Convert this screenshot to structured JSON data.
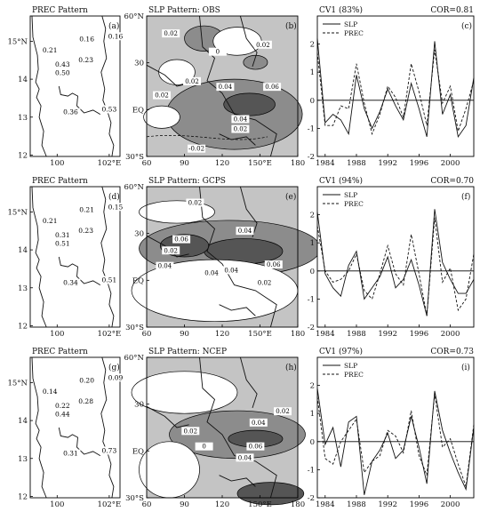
{
  "rows": [
    {
      "prec": {
        "title": "PREC Pattern",
        "panel": "(a)",
        "y_ticks": [
          "15°N",
          "14",
          "13",
          "12"
        ],
        "x_ticks": [
          "100",
          "102°E"
        ],
        "values": [
          "0.16",
          "0.16",
          "0.21",
          "0.23",
          "0.43",
          "0.50",
          "0.36",
          "0.53"
        ]
      },
      "slp": {
        "title": "SLP Pattern: OBS",
        "panel": "(b)",
        "y_ticks": [
          "60°N",
          "30",
          "EQ",
          "30°S"
        ],
        "x_ticks": [
          "60",
          "90",
          "120",
          "150°E",
          "180"
        ],
        "contours": [
          "0.02",
          "0.02",
          "0.02",
          "0.02",
          "0.04",
          "0.06",
          "0.04",
          "0.02",
          "-0.02",
          "0"
        ]
      },
      "line": {
        "title": "CV1 (83%)",
        "cor": "COR=0.81",
        "panel": "(c)",
        "legend": [
          "SLP",
          "PREC"
        ]
      }
    },
    {
      "prec": {
        "title": "PREC Pattern",
        "panel": "(d)",
        "y_ticks": [
          "15°N",
          "14",
          "13",
          "12"
        ],
        "x_ticks": [
          "100",
          "102°E"
        ],
        "values": [
          "0.21",
          "0.15",
          "0.21",
          "0.23",
          "0.31",
          "0.51",
          "0.34",
          "0.51"
        ]
      },
      "slp": {
        "title": "SLP Pattern: GCPS",
        "panel": "(e)",
        "y_ticks": [
          "60°N",
          "30",
          "EQ",
          "30°S"
        ],
        "x_ticks": [
          "60",
          "90",
          "120",
          "150°E",
          "180"
        ],
        "contours": [
          "0.02",
          "0.04",
          "0.06",
          "0.02",
          "0.04",
          "0.04",
          "0.04",
          "0.06",
          "0.02"
        ]
      },
      "line": {
        "title": "CV1 (94%)",
        "cor": "COR=0.70",
        "panel": "(f)",
        "legend": [
          "SLP",
          "PREC"
        ]
      }
    },
    {
      "prec": {
        "title": "PREC Pattern",
        "panel": "(g)",
        "y_ticks": [
          "15°N",
          "14",
          "13",
          "12"
        ],
        "x_ticks": [
          "100",
          "102°E"
        ],
        "values": [
          "0.20",
          "0.09",
          "0.14",
          "0.28",
          "0.22",
          "0.44",
          "0.31",
          "0.73"
        ]
      },
      "slp": {
        "title": "SLP Pattern: NCEP",
        "panel": "(h)",
        "y_ticks": [
          "60°N",
          "30",
          "EQ",
          "30°S"
        ],
        "x_ticks": [
          "60",
          "90",
          "120",
          "150°E",
          "180"
        ],
        "contours": [
          "0.02",
          "0.02",
          "0.04",
          "0.06",
          "0.04",
          "0"
        ]
      },
      "line": {
        "title": "CV1 (97%)",
        "cor": "COR=0.73",
        "panel": "(i)",
        "legend": [
          "SLP",
          "PREC"
        ]
      }
    }
  ],
  "chart_data": [
    {
      "type": "line",
      "title": "CV1 (83%)",
      "annotation": "COR=0.81",
      "panel": "(c)",
      "x": [
        1983,
        1984,
        1985,
        1986,
        1987,
        1988,
        1989,
        1990,
        1991,
        1992,
        1993,
        1994,
        1995,
        1996,
        1997,
        1998,
        1999,
        2000,
        2001,
        2002,
        2003
      ],
      "xticks": [
        1984,
        1988,
        1992,
        1996,
        2000
      ],
      "ylim": [
        -2,
        3
      ],
      "yticks": [
        -2,
        -1,
        0,
        1,
        2
      ],
      "series": [
        {
          "name": "SLP",
          "values": [
            2.2,
            -0.8,
            -0.5,
            -0.7,
            -1.2,
            0.9,
            -0.3,
            -1.0,
            -0.4,
            0.4,
            -0.2,
            -0.7,
            0.6,
            -0.3,
            -1.3,
            2.1,
            -0.5,
            0.2,
            -1.3,
            -0.9,
            0.8
          ]
        },
        {
          "name": "PREC",
          "values": [
            1.7,
            -0.9,
            -0.9,
            -0.2,
            -0.3,
            1.3,
            -0.1,
            -1.2,
            -0.5,
            0.5,
            0.1,
            -0.6,
            1.3,
            0.3,
            -0.9,
            1.8,
            -0.1,
            0.5,
            -1.1,
            -0.3,
            0.7
          ]
        }
      ]
    },
    {
      "type": "line",
      "title": "CV1 (94%)",
      "annotation": "COR=0.70",
      "panel": "(f)",
      "x": [
        1983,
        1984,
        1985,
        1986,
        1987,
        1988,
        1989,
        1990,
        1991,
        1992,
        1993,
        1994,
        1995,
        1996,
        1997,
        1998,
        1999,
        2000,
        2001,
        2002,
        2003
      ],
      "xticks": [
        1984,
        1988,
        1992,
        1996,
        2000
      ],
      "ylim": [
        -2,
        3
      ],
      "yticks": [
        -2,
        -1,
        0,
        1,
        2
      ],
      "series": [
        {
          "name": "SLP",
          "values": [
            2.1,
            -0.1,
            -0.6,
            -0.9,
            0.2,
            0.7,
            -1.0,
            -0.6,
            -0.2,
            0.5,
            -0.6,
            -0.3,
            0.4,
            -0.5,
            -1.6,
            2.2,
            0.3,
            -0.3,
            -0.8,
            -0.8,
            -0.3
          ]
        },
        {
          "name": "PREC",
          "values": [
            1.6,
            0.0,
            -0.4,
            -0.3,
            0.0,
            0.6,
            -0.7,
            -1.0,
            -0.1,
            0.9,
            -0.1,
            -0.5,
            1.3,
            -0.1,
            -1.6,
            1.9,
            -0.4,
            0.1,
            -1.4,
            -1.0,
            0.6
          ]
        }
      ]
    },
    {
      "type": "line",
      "title": "CV1 (97%)",
      "annotation": "COR=0.73",
      "panel": "(i)",
      "x": [
        1983,
        1984,
        1985,
        1986,
        1987,
        1988,
        1989,
        1990,
        1991,
        1992,
        1993,
        1994,
        1995,
        1996,
        1997,
        1998,
        1999,
        2000,
        2001,
        2002,
        2003
      ],
      "xticks": [
        1984,
        1988,
        1992,
        1996,
        2000
      ],
      "ylim": [
        -2,
        3
      ],
      "yticks": [
        -2,
        -1,
        0,
        1,
        2
      ],
      "series": [
        {
          "name": "SLP",
          "values": [
            1.9,
            -0.1,
            0.5,
            -0.9,
            0.7,
            0.9,
            -1.9,
            -0.7,
            -0.3,
            0.3,
            -0.6,
            -0.3,
            0.9,
            -0.2,
            -1.5,
            1.8,
            0.4,
            -0.4,
            -1.1,
            -1.7,
            0.5
          ]
        },
        {
          "name": "PREC",
          "values": [
            1.6,
            -0.6,
            -0.8,
            0.0,
            0.4,
            0.8,
            -1.1,
            -0.7,
            -0.5,
            0.4,
            0.2,
            -0.4,
            1.1,
            -0.5,
            -1.2,
            1.7,
            -0.2,
            0.1,
            -0.8,
            -1.6,
            0.6
          ]
        }
      ]
    }
  ]
}
